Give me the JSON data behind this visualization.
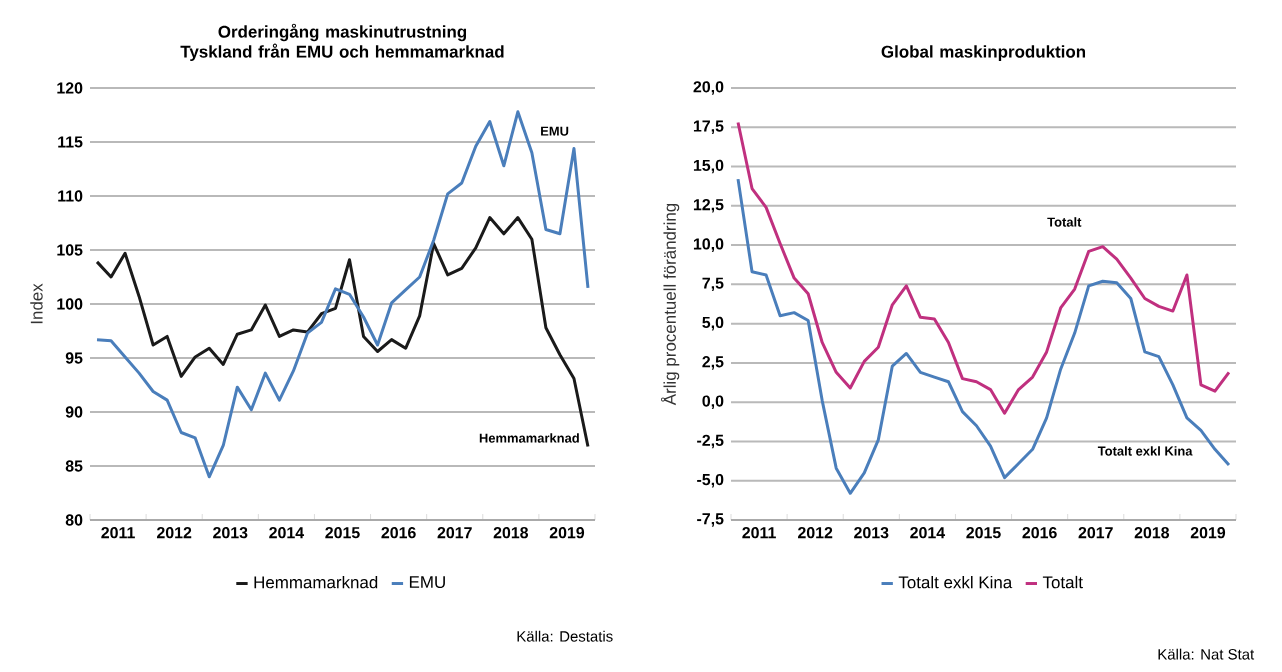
{
  "chart_data": [
    {
      "type": "line",
      "title": "Orderingång maskinutrustning Tyskland från EMU och hemmamarknad",
      "ylabel": "Index",
      "x": [
        2011.125,
        2011.375,
        2011.625,
        2011.875,
        2012.125,
        2012.375,
        2012.625,
        2012.875,
        2013.125,
        2013.375,
        2013.625,
        2013.875,
        2014.125,
        2014.375,
        2014.625,
        2014.875,
        2015.125,
        2015.375,
        2015.625,
        2015.875,
        2016.125,
        2016.375,
        2016.625,
        2016.875,
        2017.125,
        2017.375,
        2017.625,
        2017.875,
        2018.125,
        2018.375,
        2018.625,
        2018.875,
        2019.125,
        2019.375,
        2019.625,
        2019.875
      ],
      "series": [
        {
          "name": "Hemmamarknad",
          "color": "#1a1a1a",
          "values": [
            103.9,
            102.5,
            104.7,
            100.7,
            96.2,
            97.0,
            93.3,
            95.1,
            95.9,
            94.4,
            97.2,
            97.6,
            99.9,
            97.0,
            97.6,
            97.4,
            99.1,
            99.6,
            104.1,
            97.0,
            95.6,
            96.7,
            95.9,
            98.9,
            105.6,
            102.7,
            103.3,
            105.2,
            108.0,
            106.5,
            108.0,
            106.0,
            97.8,
            95.3,
            93.1,
            86.8
          ]
        },
        {
          "name": "EMU",
          "color": "#4a7ebb",
          "values": [
            96.7,
            96.6,
            95.1,
            93.6,
            91.9,
            91.1,
            88.1,
            87.6,
            84.0,
            86.9,
            92.3,
            90.2,
            93.6,
            91.1,
            93.8,
            97.3,
            98.3,
            101.4,
            100.9,
            98.8,
            96.2,
            100.1,
            101.3,
            102.5,
            105.9,
            110.2,
            111.2,
            114.6,
            116.9,
            112.8,
            117.8,
            114.0,
            106.9,
            106.5,
            114.4,
            101.5
          ]
        }
      ],
      "xlim": [
        2011,
        2020
      ],
      "xticks": [
        {
          "value": 2011,
          "label": null
        },
        {
          "value": 2012,
          "label": null
        },
        {
          "value": 2013,
          "label": null
        },
        {
          "value": 2014,
          "label": null
        },
        {
          "value": 2015,
          "label": null
        },
        {
          "value": 2016,
          "label": null
        },
        {
          "value": 2017,
          "label": null
        },
        {
          "value": 2018,
          "label": null
        },
        {
          "value": 2019,
          "label": null
        },
        {
          "value": 2020,
          "label": null
        },
        {
          "value": 2011.5,
          "label": "2011"
        },
        {
          "value": 2012.5,
          "label": "2012"
        },
        {
          "value": 2013.5,
          "label": "2013"
        },
        {
          "value": 2014.5,
          "label": "2014"
        },
        {
          "value": 2015.5,
          "label": "2015"
        },
        {
          "value": 2016.5,
          "label": "2016"
        },
        {
          "value": 2017.5,
          "label": "2017"
        },
        {
          "value": 2018.5,
          "label": "2018"
        },
        {
          "value": 2019.5,
          "label": "2019"
        }
      ],
      "ylim": [
        80,
        120
      ],
      "yticks": [
        80,
        85,
        90,
        95,
        100,
        105,
        110,
        115,
        120
      ],
      "grid": "y",
      "legend": "bottom",
      "annotations": [
        "EMU",
        "Hemmamarknad",
        "Källa: Destatis"
      ]
    },
    {
      "type": "line",
      "title": "Global maskinproduktion",
      "ylabel": "Årlig procentuell förändring",
      "x": [
        2011.125,
        2011.375,
        2011.625,
        2011.875,
        2012.125,
        2012.375,
        2012.625,
        2012.875,
        2013.125,
        2013.375,
        2013.625,
        2013.875,
        2014.125,
        2014.375,
        2014.625,
        2014.875,
        2015.125,
        2015.375,
        2015.625,
        2015.875,
        2016.125,
        2016.375,
        2016.625,
        2016.875,
        2017.125,
        2017.375,
        2017.625,
        2017.875,
        2018.125,
        2018.375,
        2018.625,
        2018.875,
        2019.125,
        2019.375,
        2019.625,
        2019.875
      ],
      "series": [
        {
          "name": "Totalt exkl Kina",
          "color": "#4a7ebb",
          "values": [
            14.2,
            8.3,
            8.1,
            5.5,
            5.7,
            5.2,
            0.1,
            -4.2,
            -5.8,
            -4.5,
            -2.4,
            2.3,
            3.1,
            1.9,
            1.6,
            1.3,
            -0.6,
            -1.5,
            -2.8,
            -4.8,
            -3.9,
            -3.0,
            -1.0,
            2.1,
            4.4,
            7.4,
            7.7,
            7.6,
            6.6,
            3.2,
            2.9,
            1.1,
            -1.0,
            -1.8,
            -3.0,
            -4.0
          ]
        },
        {
          "name": "Totalt",
          "color": "#c0307f",
          "values": [
            17.8,
            13.6,
            12.4,
            10.1,
            7.9,
            6.9,
            3.8,
            1.9,
            0.9,
            2.6,
            3.5,
            6.2,
            7.4,
            5.4,
            5.3,
            3.8,
            1.5,
            1.3,
            0.8,
            -0.7,
            0.8,
            1.6,
            3.2,
            6.0,
            7.2,
            9.6,
            9.9,
            9.1,
            7.9,
            6.6,
            6.1,
            5.8,
            8.1,
            1.1,
            0.7,
            1.9
          ]
        }
      ],
      "xlim": [
        2011,
        2020
      ],
      "xticks": [
        {
          "value": 2011,
          "label": null
        },
        {
          "value": 2012,
          "label": null
        },
        {
          "value": 2013,
          "label": null
        },
        {
          "value": 2014,
          "label": null
        },
        {
          "value": 2015,
          "label": null
        },
        {
          "value": 2016,
          "label": null
        },
        {
          "value": 2017,
          "label": null
        },
        {
          "value": 2018,
          "label": null
        },
        {
          "value": 2019,
          "label": null
        },
        {
          "value": 2020,
          "label": null
        },
        {
          "value": 2011.5,
          "label": "2011"
        },
        {
          "value": 2012.5,
          "label": "2012"
        },
        {
          "value": 2013.5,
          "label": "2013"
        },
        {
          "value": 2014.5,
          "label": "2014"
        },
        {
          "value": 2015.5,
          "label": "2015"
        },
        {
          "value": 2016.5,
          "label": "2016"
        },
        {
          "value": 2017.5,
          "label": "2017"
        },
        {
          "value": 2018.5,
          "label": "2018"
        },
        {
          "value": 2019.5,
          "label": "2019"
        }
      ],
      "ylim": [
        -7.5,
        20
      ],
      "yticks": [
        {
          "value": -7.5,
          "label": "-7,5"
        },
        {
          "value": -5,
          "label": "-5,0"
        },
        {
          "value": -2.5,
          "label": "-2,5"
        },
        {
          "value": 0,
          "label": "0,0"
        },
        {
          "value": 2.5,
          "label": "2,5"
        },
        {
          "value": 5,
          "label": "5,0"
        },
        {
          "value": 7.5,
          "label": "7,5"
        },
        {
          "value": 10,
          "label": "10,0"
        },
        {
          "value": 12.5,
          "label": "12,5"
        },
        {
          "value": 15,
          "label": "15,0"
        },
        {
          "value": 17.5,
          "label": "17,5"
        },
        {
          "value": 20,
          "label": "20,0"
        }
      ],
      "grid": "y",
      "legend": "bottom",
      "annotations": [
        "Totalt",
        "Totalt exkl Kina",
        "Källa: Nat Stat"
      ]
    }
  ]
}
